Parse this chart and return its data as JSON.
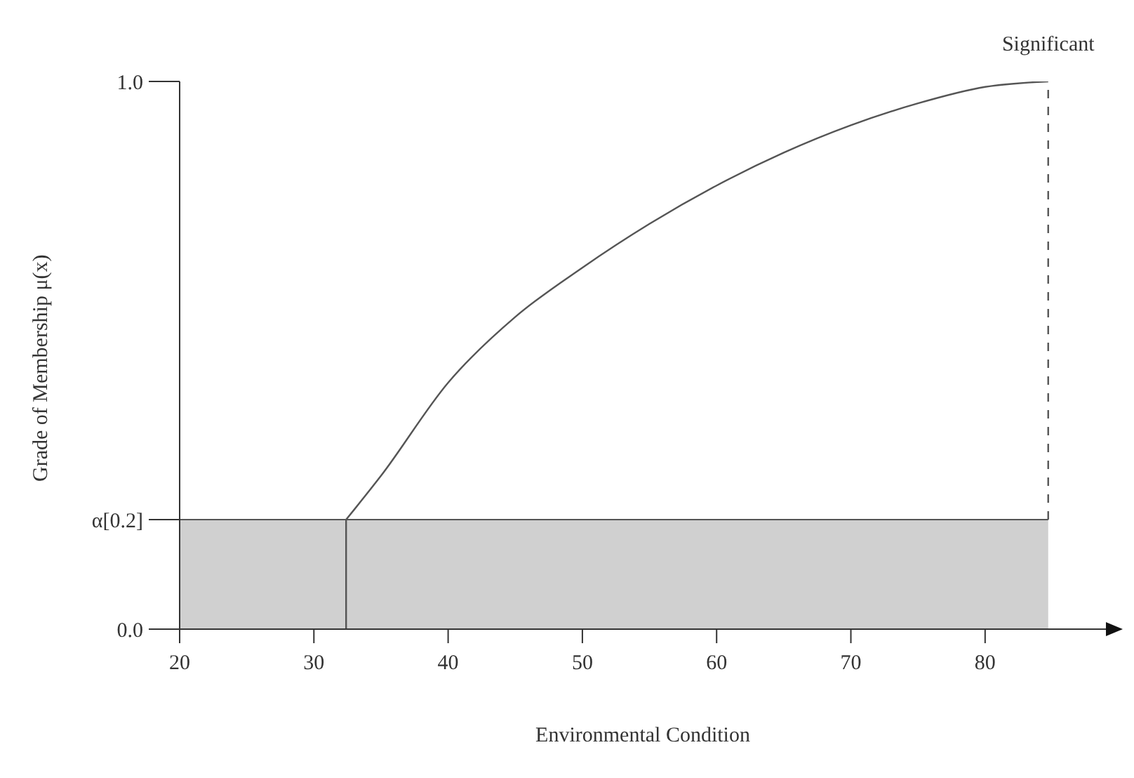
{
  "chart_data": {
    "type": "line",
    "xlabel": "Environmental Condition",
    "ylabel": "Grade of Membership μ(x)",
    "xlim": [
      20,
      89
    ],
    "xticks": [
      20,
      30,
      40,
      50,
      60,
      70,
      80
    ],
    "ylim": [
      0,
      1
    ],
    "yticks": [
      {
        "value": 0,
        "label": "0.0"
      },
      {
        "value": 0.2,
        "label": "α[0.2]"
      },
      {
        "value": 1,
        "label": "1.0"
      }
    ],
    "marker": "none",
    "annotations": [
      {
        "text": "Significant",
        "x": 84.7,
        "y": 1
      }
    ],
    "series": [
      {
        "type": "area",
        "color": "#d0d0d0",
        "x": [
          20,
          84.7
        ],
        "values": [
          0.2,
          0.2
        ]
      },
      {
        "color": "#555555",
        "x": [
          32.4,
          32.4
        ],
        "values": [
          0,
          0.2
        ]
      },
      {
        "color": "#555555",
        "x": [
          32.4,
          35,
          40,
          45,
          50,
          55,
          60,
          65,
          70,
          75,
          80,
          84.7
        ],
        "values": [
          0.2,
          0.28,
          0.45,
          0.57,
          0.66,
          0.74,
          0.81,
          0.87,
          0.92,
          0.96,
          0.99,
          1
        ]
      },
      {
        "color": "#555555",
        "line_style": "dashed",
        "x": [
          84.7,
          84.7
        ],
        "values": [
          0.2,
          1
        ]
      }
    ]
  }
}
